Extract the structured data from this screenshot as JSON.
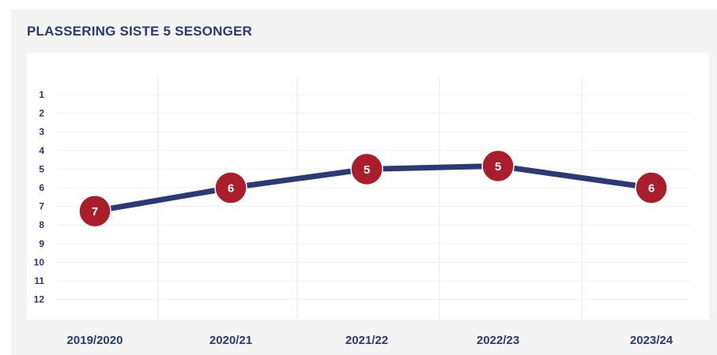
{
  "title": "PLASSERING SISTE 5 SESONGER",
  "colors": {
    "panel_bg": "#f4f4f4",
    "plot_bg": "#ffffff",
    "line": "#2b3a74",
    "marker": "#a91d2c",
    "text": "#2b3a74"
  },
  "chart_data": {
    "type": "line",
    "title": "PLASSERING SISTE 5 SESONGER",
    "xlabel": "",
    "ylabel": "",
    "categories": [
      "2019/2020",
      "2020/21",
      "2021/22",
      "2022/23",
      "2023/24"
    ],
    "series": [
      {
        "values": [
          7,
          6,
          5,
          5,
          6
        ],
        "labels": [
          "7",
          "6",
          "5",
          "5",
          "6"
        ]
      }
    ],
    "y_ticks": [
      1,
      2,
      3,
      4,
      5,
      6,
      7,
      8,
      9,
      10,
      11,
      12
    ],
    "ylim": [
      1,
      12
    ],
    "y_inverted": true,
    "grid": true,
    "legend": "none"
  }
}
